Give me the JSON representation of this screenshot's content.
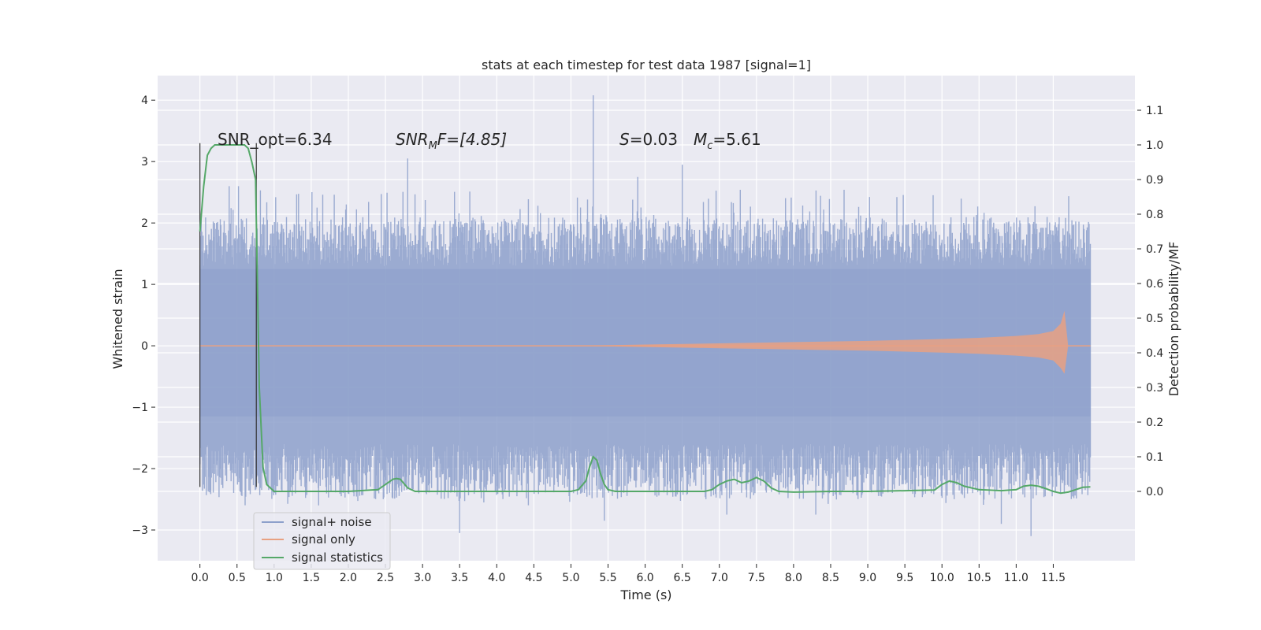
{
  "chart_data": {
    "type": "line",
    "title": "stats at each timestep for test data 1987 [signal=1]",
    "xlabel": "Time (s)",
    "ylabel": "Whitened strain",
    "ylabel_right": "Detection probability/MF",
    "xlim": [
      -0.57,
      12.6
    ],
    "ylim": [
      -3.5,
      4.4
    ],
    "ylim_right": [
      -0.2,
      1.2
    ],
    "xticks": [
      "0.0",
      "0.5",
      "1.0",
      "1.5",
      "2.0",
      "2.5",
      "3.0",
      "3.5",
      "4.0",
      "4.5",
      "5.0",
      "5.5",
      "6.0",
      "6.5",
      "7.0",
      "7.5",
      "8.0",
      "8.5",
      "9.0",
      "9.5",
      "10.0",
      "10.5",
      "11.0",
      "11.5"
    ],
    "yticks_left": [
      "−3",
      "−2",
      "−1",
      "0",
      "1",
      "2",
      "3",
      "4"
    ],
    "yticks_right": [
      "0.0",
      "0.1",
      "0.2",
      "0.3",
      "0.4",
      "0.5",
      "0.6",
      "0.7",
      "0.8",
      "0.9",
      "1.0",
      "1.1"
    ],
    "grid": true,
    "legend_position": "lower-left",
    "annotations": {
      "snr_opt": "SNR_opt=6.34",
      "snr_mf_prefix": "SNR",
      "snr_mf_sub": "M",
      "snr_mf_suffix": "F=[4.85]",
      "s_sym": "S",
      "s_val": "=0.03",
      "mc_sym": "M",
      "mc_sub": "c",
      "mc_val": "=5.61"
    },
    "vertical_lines_x": [
      0.0,
      0.76
    ],
    "series": [
      {
        "name": "signal+ noise",
        "color": "#8da0cb",
        "axis": "left",
        "time_range": [
          0,
          12.0
        ],
        "envelope_typical": [
          -1.6,
          2.1
        ],
        "envelope_extreme": [
          -3.05,
          4.08
        ]
      },
      {
        "name": "signal only",
        "color": "#e8a182",
        "axis": "left",
        "x": [
          0,
          5,
          6,
          7,
          8,
          9,
          10,
          10.5,
          11,
          11.3,
          11.5,
          11.6,
          11.65,
          11.7,
          12.0
        ],
        "amplitude": [
          0.0,
          0.0,
          0.02,
          0.04,
          0.06,
          0.08,
          0.11,
          0.13,
          0.16,
          0.19,
          0.24,
          0.36,
          0.57,
          0.0,
          0.0
        ]
      },
      {
        "name": "signal statistics",
        "color": "#55a868",
        "axis": "right",
        "x": [
          0.0,
          0.05,
          0.1,
          0.15,
          0.2,
          0.3,
          0.4,
          0.5,
          0.6,
          0.65,
          0.7,
          0.75,
          0.8,
          0.85,
          0.9,
          1.0,
          1.5,
          2.0,
          2.4,
          2.5,
          2.6,
          2.65,
          2.7,
          2.8,
          2.9,
          3.0,
          3.5,
          4.0,
          4.5,
          5.0,
          5.1,
          5.2,
          5.25,
          5.3,
          5.35,
          5.4,
          5.45,
          5.5,
          5.6,
          6.0,
          6.5,
          6.8,
          6.9,
          7.0,
          7.1,
          7.2,
          7.3,
          7.4,
          7.5,
          7.6,
          7.7,
          7.8,
          8.0,
          8.5,
          9.0,
          9.5,
          9.9,
          10.0,
          10.1,
          10.2,
          10.3,
          10.5,
          10.8,
          11.0,
          11.1,
          11.2,
          11.3,
          11.4,
          11.5,
          11.6,
          11.7,
          11.8,
          11.9,
          12.0
        ],
        "y": [
          0.75,
          0.88,
          0.97,
          0.99,
          1.0,
          1.0,
          1.0,
          1.0,
          1.0,
          0.99,
          0.95,
          0.9,
          0.3,
          0.07,
          0.02,
          0.0,
          0.0,
          0.0,
          0.005,
          0.02,
          0.035,
          0.037,
          0.035,
          0.01,
          0.0,
          0.0,
          0.0,
          0.0,
          0.0,
          0.0,
          0.005,
          0.03,
          0.07,
          0.1,
          0.09,
          0.05,
          0.02,
          0.005,
          0.0,
          0.0,
          0.0,
          0.0,
          0.005,
          0.02,
          0.03,
          0.035,
          0.025,
          0.03,
          0.04,
          0.03,
          0.01,
          0.0,
          -0.002,
          0.0,
          0.0,
          0.002,
          0.004,
          0.02,
          0.03,
          0.025,
          0.015,
          0.005,
          0.002,
          0.005,
          0.015,
          0.018,
          0.015,
          0.008,
          0.0,
          -0.005,
          -0.002,
          0.005,
          0.012,
          0.013
        ]
      }
    ]
  }
}
